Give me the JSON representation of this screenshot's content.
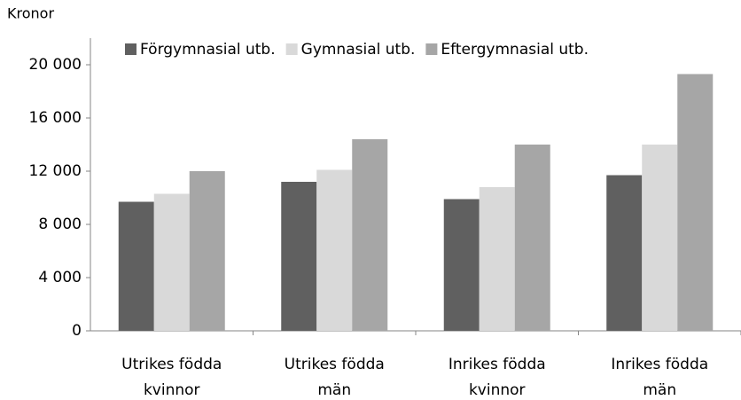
{
  "chart_data": {
    "type": "bar",
    "y_axis_label": "Kronor",
    "categories": [
      "Utrikes födda\nkvinnor",
      "Utrikes födda\nmän",
      "Inrikes födda\nkvinnor",
      "Inrikes födda\nmän"
    ],
    "series": [
      {
        "name": "Förgymnasial utb.",
        "color": "#606060",
        "values": [
          9700,
          11200,
          9900,
          11700
        ]
      },
      {
        "name": "Gymnasial utb.",
        "color": "#d9d9d9",
        "values": [
          10300,
          12100,
          10800,
          14000
        ]
      },
      {
        "name": "Eftergymnasial utb.",
        "color": "#a6a6a6",
        "values": [
          12000,
          14400,
          14000,
          19300
        ]
      }
    ],
    "ylim": [
      0,
      20000
    ],
    "yticks": [
      0,
      {
        "value": 4000,
        "label": "4 000"
      },
      {
        "value": 8000,
        "label": "8 000"
      },
      {
        "value": 12000,
        "label": "12 000"
      },
      {
        "value": 16000,
        "label": "16 000"
      },
      {
        "value": 20000,
        "label": "20 000"
      }
    ],
    "legend": "top",
    "grid": false
  }
}
